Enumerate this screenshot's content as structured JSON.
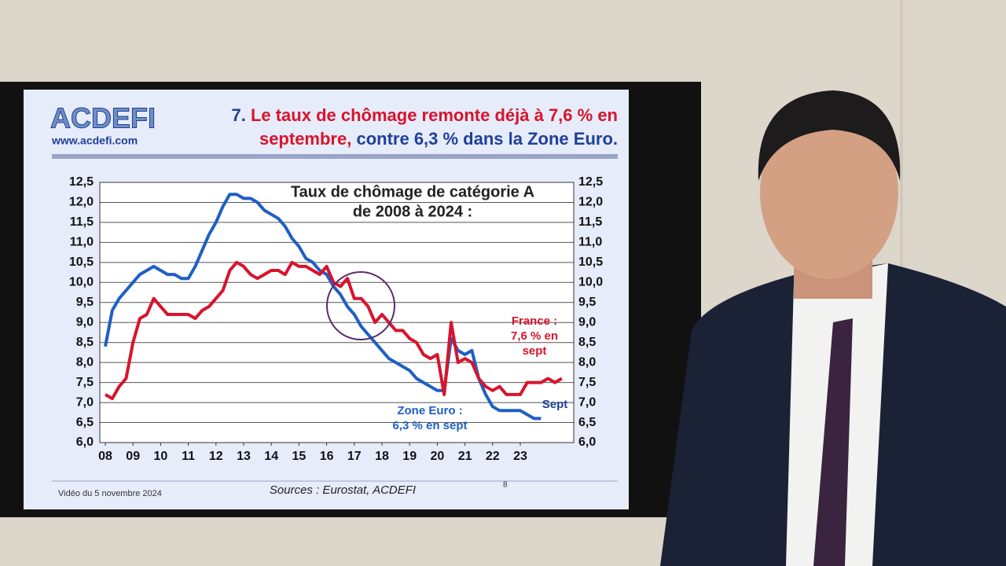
{
  "slide": {
    "logo": "ACDEFI",
    "website": "www.acdefi.com",
    "heading": [
      [
        {
          "text": "7.",
          "color": "#1f3f99"
        },
        {
          "text": "Le taux de chômage remonte déjà à 7,6 % en",
          "color": "#d8142c"
        }
      ],
      [
        {
          "text": "septembre,",
          "color": "#d8142c"
        },
        {
          "text": "contre 6,3 % dans la Zone Euro.",
          "color": "#1f3f99"
        }
      ]
    ],
    "footer_left": "Vidéo du 5 novembre 2024",
    "footer_source": "Sources : Eurostat, ACDEFI",
    "page_number": "8"
  },
  "chart_data": {
    "type": "line",
    "title": [
      "Taux de chômage de catégorie A",
      "de 2008 à 2024 :"
    ],
    "x": [
      8,
      8.25,
      8.5,
      8.75,
      9,
      9.25,
      9.5,
      9.75,
      10,
      10.25,
      10.5,
      10.75,
      11,
      11.25,
      11.5,
      11.75,
      12,
      12.25,
      12.5,
      12.75,
      13,
      13.25,
      13.5,
      13.75,
      14,
      14.25,
      14.5,
      14.75,
      15,
      15.25,
      15.5,
      15.75,
      16,
      16.25,
      16.5,
      16.75,
      17,
      17.25,
      17.5,
      17.75,
      18,
      18.25,
      18.5,
      18.75,
      19,
      19.25,
      19.5,
      19.75,
      20,
      20.25,
      20.5,
      20.75,
      21,
      21.25,
      21.5,
      21.75,
      22,
      22.25,
      22.5,
      22.75,
      23,
      23.25,
      23.5,
      23.75,
      24,
      24.25,
      24.5
    ],
    "series": [
      {
        "name": "Zone Euro",
        "color": "#1f5fc4",
        "values": [
          8.4,
          9.3,
          9.6,
          9.8,
          10.0,
          10.2,
          10.3,
          10.4,
          10.3,
          10.2,
          10.2,
          10.1,
          10.1,
          10.4,
          10.8,
          11.2,
          11.5,
          11.9,
          12.2,
          12.2,
          12.1,
          12.1,
          12.0,
          11.8,
          11.7,
          11.6,
          11.4,
          11.1,
          10.9,
          10.6,
          10.5,
          10.3,
          10.2,
          9.9,
          9.7,
          9.4,
          9.2,
          8.9,
          8.7,
          8.5,
          8.3,
          8.1,
          8.0,
          7.9,
          7.8,
          7.6,
          7.5,
          7.4,
          7.3,
          7.3,
          8.6,
          8.3,
          8.2,
          8.3,
          7.6,
          7.2,
          6.9,
          6.8,
          6.8,
          6.8,
          6.8,
          6.7,
          6.6,
          6.6,
          null,
          null,
          null
        ]
      },
      {
        "name": "France",
        "color": "#d8142c",
        "values": [
          7.2,
          7.1,
          7.4,
          7.6,
          8.5,
          9.1,
          9.2,
          9.6,
          9.4,
          9.2,
          9.2,
          9.2,
          9.2,
          9.1,
          9.3,
          9.4,
          9.6,
          9.8,
          10.3,
          10.5,
          10.4,
          10.2,
          10.1,
          10.2,
          10.3,
          10.3,
          10.2,
          10.5,
          10.4,
          10.4,
          10.3,
          10.2,
          10.4,
          10.0,
          9.9,
          10.1,
          9.6,
          9.6,
          9.4,
          9.0,
          9.2,
          9.0,
          8.8,
          8.8,
          8.6,
          8.5,
          8.2,
          8.1,
          8.2,
          7.2,
          9.0,
          8.0,
          8.1,
          8.0,
          7.6,
          7.4,
          7.3,
          7.4,
          7.2,
          7.2,
          7.2,
          7.5,
          7.5,
          7.5,
          7.6,
          7.5,
          7.6
        ]
      }
    ],
    "xlim": [
      8,
      24.7
    ],
    "xticks": [
      {
        "value": 8,
        "label": "08"
      },
      {
        "value": 9,
        "label": "09"
      },
      10,
      11,
      12,
      13,
      14,
      15,
      16,
      17,
      18,
      19,
      20,
      21,
      22,
      23
    ],
    "ylim": [
      6.0,
      12.5
    ],
    "yticks": [
      {
        "value": 6.0,
        "label": "6,0"
      },
      {
        "value": 6.5,
        "label": "6,5"
      },
      {
        "value": 7.0,
        "label": "7,0"
      },
      {
        "value": 7.5,
        "label": "7,5"
      },
      {
        "value": 8.0,
        "label": "8,0"
      },
      {
        "value": 8.5,
        "label": "8,5"
      },
      {
        "value": 9.0,
        "label": "9,0"
      },
      {
        "value": 9.5,
        "label": "9,5"
      },
      {
        "value": 10.0,
        "label": "10,0"
      },
      {
        "value": 10.5,
        "label": "10,5"
      },
      {
        "value": 11.0,
        "label": "11,0"
      },
      {
        "value": 11.5,
        "label": "11,5"
      },
      {
        "value": 12.0,
        "label": "12,0"
      },
      {
        "value": 12.5,
        "label": "12,5"
      }
    ],
    "grid": true,
    "annotations": [
      {
        "lines": [
          "France :",
          "7,6 % en",
          "sept"
        ],
        "color": "#d8142c"
      },
      {
        "lines": [
          "Zone Euro :",
          "6,3 % en sept"
        ],
        "color": "#1f5fc4"
      },
      {
        "lines": [
          "Sept"
        ],
        "color": "#1f3f99"
      }
    ]
  }
}
